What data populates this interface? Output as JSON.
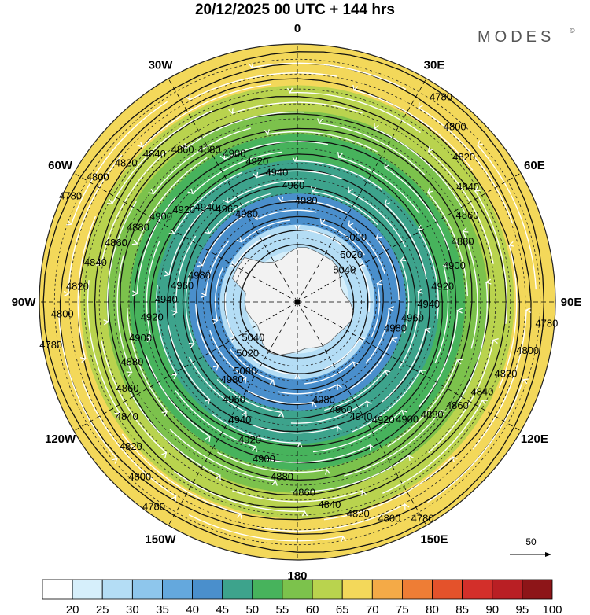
{
  "title": "20/12/2025  00 UTC  + 144 hrs",
  "brand": "MODES",
  "brand_mark": "©",
  "longitude_labels": [
    {
      "label": "0",
      "lon": 0
    },
    {
      "label": "30E",
      "lon": 30
    },
    {
      "label": "60E",
      "lon": 60
    },
    {
      "label": "90E",
      "lon": 90
    },
    {
      "label": "120E",
      "lon": 120
    },
    {
      "label": "150E",
      "lon": 150
    },
    {
      "label": "180",
      "lon": 180
    },
    {
      "label": "150W",
      "lon": -150
    },
    {
      "label": "120W",
      "lon": -120
    },
    {
      "label": "90W",
      "lon": -90
    },
    {
      "label": "60W",
      "lon": -60
    },
    {
      "label": "30W",
      "lon": -30
    }
  ],
  "contour_labels": [
    "4780",
    "4800",
    "4820",
    "4840",
    "4860",
    "4880",
    "4900",
    "4920",
    "4940",
    "4960",
    "4980",
    "5000",
    "5020",
    "5040"
  ],
  "wind_reference": "50",
  "colorbar": {
    "ticks": [
      "20",
      "25",
      "30",
      "35",
      "40",
      "45",
      "50",
      "55",
      "60",
      "65",
      "70",
      "75",
      "80",
      "85",
      "90",
      "95",
      "100"
    ],
    "colors": [
      "#ffffff",
      "#d6effb",
      "#b4ddf5",
      "#8ec6ec",
      "#64a8dd",
      "#4a8fcc",
      "#3da38c",
      "#47b35c",
      "#7cc24c",
      "#b9d34e",
      "#f3d85a",
      "#f4aa47",
      "#ee7d35",
      "#e4522b",
      "#d32f2a",
      "#b91f24",
      "#8d1518"
    ]
  },
  "map_data": {
    "projection": "south-polar-stereographic",
    "field": "500 hPa geopotential height (m) with wind speed shading",
    "wind_speed_by_ring": [
      {
        "ring": 0.2,
        "speed": 20
      },
      {
        "ring": 0.3,
        "speed": 28
      },
      {
        "ring": 0.42,
        "speed": 40
      },
      {
        "ring": 0.55,
        "speed": 47
      },
      {
        "ring": 0.65,
        "speed": 53
      },
      {
        "ring": 0.74,
        "speed": 58
      },
      {
        "ring": 0.84,
        "speed": 62
      },
      {
        "ring": 0.93,
        "speed": 66
      },
      {
        "ring": 1.0,
        "speed": 68
      }
    ]
  }
}
